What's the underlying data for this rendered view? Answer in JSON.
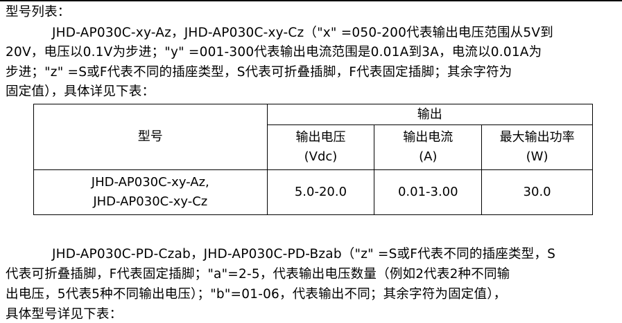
{
  "heading": "型号列表：",
  "para1": {
    "lines": [
      "JHD-AP030C-xy-Az，JHD-AP030C-xy-Cz（\"x\" =050-200代表输出电压范围从5V到",
      "20V，电压以0.1V为步进；\"y\" =001-300代表输出电流范围是0.01A到3A，电流以0.01A为",
      "步进；\"z\" =S或F代表不同的插座类型，S代表可折叠插脚，F代表固定插脚；其余字符为",
      "固定值），具体详见下表："
    ]
  },
  "table": {
    "model_header": "型号",
    "output_header": "输出",
    "col_voltage": [
      "输出电压",
      "(Vdc)"
    ],
    "col_current": [
      "输出电流",
      "(A)"
    ],
    "col_power": [
      "最大输出功率",
      "(W)"
    ],
    "row": {
      "model": [
        "JHD-AP030C-xy-Az,",
        "JHD-AP030C-xy-Cz"
      ],
      "voltage": "5.0-20.0",
      "current": "0.01-3.00",
      "power": "30.0"
    }
  },
  "para2": {
    "lines": [
      "JHD-AP030C-PD-Czab，JHD-AP030C-PD-Bzab（\"z\" =S或F代表不同的插座类型，S",
      "代表可折叠插脚，F代表固定插脚；\"a\"=2-5，代表输出电压数量（例如2代表2种不同输",
      "出电压，5代表5种不同输出电压）；\"b\"=01-06，代表输出不同；其余字符为固定值），",
      "具体型号详见下表："
    ]
  }
}
